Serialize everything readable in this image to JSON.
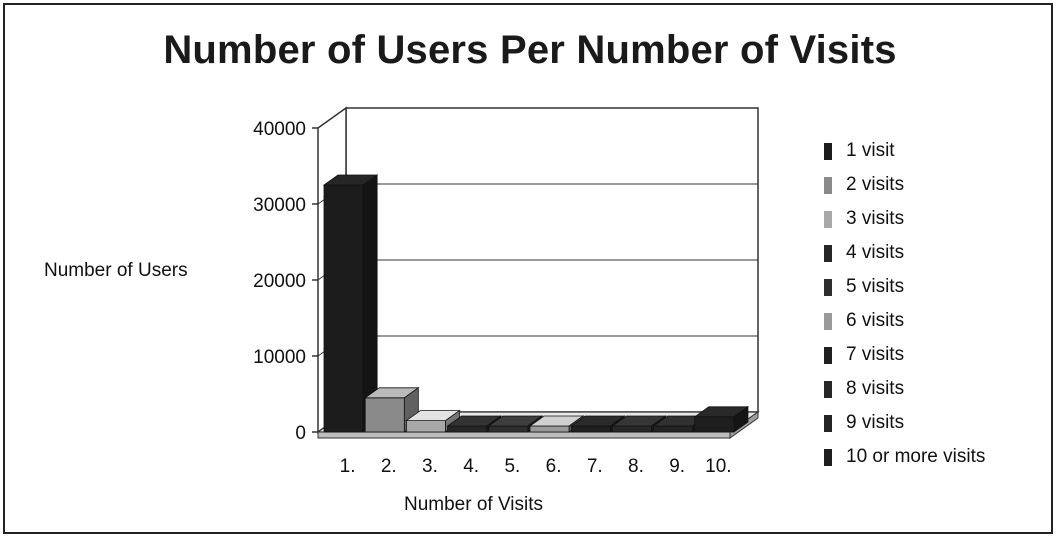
{
  "chart_data": {
    "type": "bar",
    "title": "Number of Users Per Number of Visits",
    "xlabel": "Number of Visits",
    "ylabel": "Number of Users",
    "categories": [
      "1.",
      "2.",
      "3.",
      "4.",
      "5.",
      "6.",
      "7.",
      "8.",
      "9.",
      "10."
    ],
    "values": [
      32500,
      4500,
      1500,
      700,
      400,
      300,
      200,
      150,
      120,
      2000
    ],
    "ylim": [
      0,
      40000
    ],
    "yticks": [
      "0",
      "10000",
      "20000",
      "30000",
      "40000"
    ],
    "legend": {
      "position": "right",
      "entries": [
        "1 visit",
        "2 visits",
        "3 visits",
        "4 visits",
        "5 visits",
        "6 visits",
        "7 visits",
        "8 visits",
        "9 visits",
        "10 or more visits"
      ]
    },
    "grid": true,
    "colors": [
      "#1c1c1c",
      "#8a8a8a",
      "#a8a8a8",
      "#262626",
      "#2e2e2e",
      "#9a9a9a",
      "#202020",
      "#282828",
      "#242424",
      "#1e1e1e"
    ]
  }
}
